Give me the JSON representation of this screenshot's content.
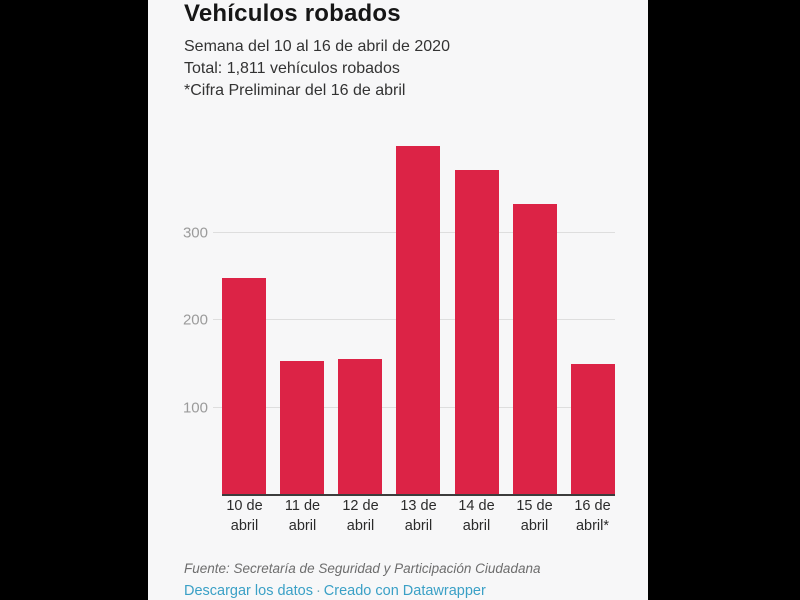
{
  "header": {
    "title": "Vehículos robados",
    "subtitle_line1": "Semana del 10 al 16 de abril de 2020",
    "subtitle_line2": "Total: 1,811 vehículos robados",
    "subtitle_line3": "*Cifra Preliminar del 16 de abril"
  },
  "chart_data": {
    "type": "bar",
    "title": "Vehículos robados",
    "subtitle": "Semana del 10 al 16 de abril de 2020. Total: 1,811 vehículos robados. *Cifra Preliminar del 16 de abril",
    "categories": [
      "10 de\nabril",
      "11 de\nabril",
      "12 de\nabril",
      "13 de\nabril",
      "14 de\nabril",
      "15 de\nabril",
      "16 de\nabril*"
    ],
    "values": [
      248,
      153,
      156,
      399,
      372,
      333,
      150
    ],
    "total": 1811,
    "yticks": [
      100,
      200,
      300
    ],
    "ylim": [
      0,
      408
    ],
    "grid": true,
    "legend": "none",
    "xlabel": "",
    "ylabel": "",
    "bar_color": "#dc2346",
    "gridline_color": "#dedede",
    "axis_line_color": "#3c3c3c",
    "tick_label_color": "#9b9b9b"
  },
  "footer": {
    "source": "Fuente: Secretaría de Seguridad y Participación Ciudadana",
    "link_download": "Descargar los datos",
    "separator": "·",
    "link_credit": "Creado con Datawrapper",
    "link_color": "#3aa0c6"
  }
}
